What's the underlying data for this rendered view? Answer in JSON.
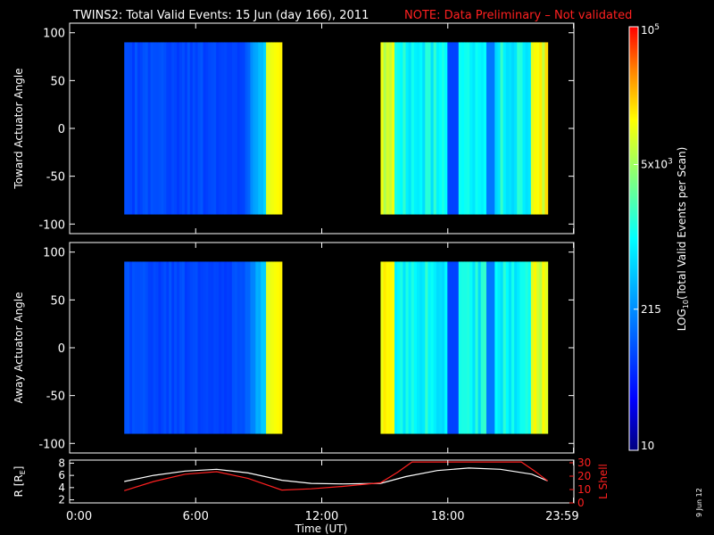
{
  "chart_data": {
    "type": "heatmap",
    "title": {
      "main": "TWINS2: Total Valid Events: 15 Jun (day 166), 2011",
      "note": "NOTE: Data Preliminary – Not validated"
    },
    "stamp": "9 Jun 12",
    "panels": [
      {
        "ylabel": "Toward Actuator Angle",
        "ylim": [
          -110,
          110
        ],
        "yticks": [
          100,
          50,
          0,
          -50,
          -100
        ],
        "coverage": [
          [
            2.6,
            10.1
          ],
          [
            14.8,
            22.75
          ]
        ],
        "angle_range": [
          -90,
          90
        ]
      },
      {
        "ylabel": "Away Actuator Angle",
        "ylim": [
          -110,
          110
        ],
        "yticks": [
          100,
          50,
          0,
          -50,
          -100
        ],
        "coverage": [
          [
            2.6,
            10.1
          ],
          [
            14.8,
            22.75
          ]
        ],
        "angle_range": [
          -90,
          90
        ]
      }
    ],
    "orbit": {
      "ylabel_left": "R [R",
      "ylabel_left_sub": "E",
      "ylabel_left_end": "]",
      "ylabel_right": "L Shell",
      "yleft_lim": [
        1.5,
        8.5
      ],
      "yleft_ticks": [
        2,
        4,
        6,
        8
      ],
      "yright_lim": [
        0,
        32
      ],
      "yright_ticks": [
        0,
        10,
        20,
        30
      ],
      "r_series": {
        "name": "R",
        "color": "#ffffff",
        "x": [
          2.6,
          4,
          5.5,
          7,
          8.5,
          10.1,
          11.5,
          13,
          14.8,
          16,
          17.5,
          19,
          20.5,
          22,
          22.75
        ],
        "y": [
          5.0,
          6.0,
          6.7,
          7.0,
          6.4,
          5.2,
          4.7,
          4.6,
          4.7,
          5.8,
          6.8,
          7.2,
          7.0,
          6.2,
          5.1
        ]
      },
      "l_series": {
        "name": "L Shell",
        "color": "#ff2020",
        "x": [
          2.6,
          4,
          5.5,
          7,
          8.5,
          10.1,
          11.5,
          13,
          14.8,
          15.6,
          16.3,
          21.5,
          22.1,
          22.75
        ],
        "y": [
          3.5,
          5.0,
          6.2,
          6.6,
          5.5,
          3.6,
          3.8,
          4.2,
          4.8,
          6.5,
          8.2,
          8.2,
          6.8,
          5.1
        ]
      }
    },
    "xaxis": {
      "label": "Time (UT)",
      "xlim": [
        0,
        24
      ],
      "ticks": [
        0,
        6,
        12,
        18,
        23.983
      ],
      "tick_labels": [
        "0:00",
        "6:00",
        "12:00",
        "18:00",
        "23:59"
      ]
    },
    "colorbar": {
      "label_pre": "LOG",
      "label_sub": "10",
      "label_post": "(Total Valid  Events per Scan)",
      "range_log10": [
        1,
        5
      ],
      "scale": "log",
      "ticks": [
        {
          "value": 10,
          "text": "10",
          "exp": ""
        },
        {
          "value": 215,
          "text": "215",
          "exp": ""
        },
        {
          "value": 5000,
          "text": "5x10",
          "exp": "3"
        },
        {
          "value": 100000,
          "text": "10",
          "exp": "5"
        }
      ]
    }
  }
}
